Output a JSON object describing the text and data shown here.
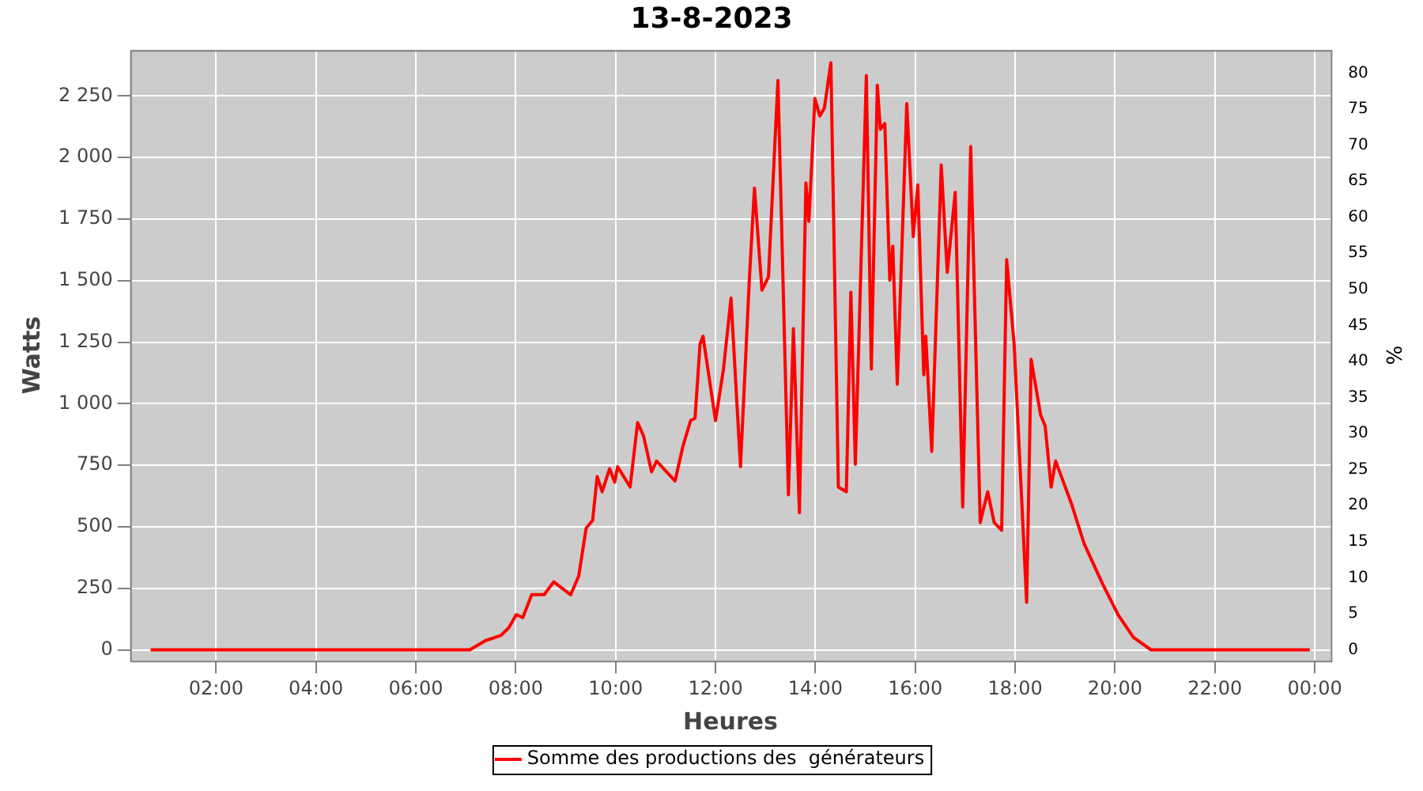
{
  "chart_data": {
    "type": "line",
    "title": "13-8-2023",
    "xlabel": "Heures",
    "ylabel": "Watts",
    "y2label": "%",
    "xlim": [
      0.28,
      24.32
    ],
    "xticks": [
      {
        "value": 2,
        "label": "02:00"
      },
      {
        "value": 4,
        "label": "04:00"
      },
      {
        "value": 6,
        "label": "06:00"
      },
      {
        "value": 8,
        "label": "08:00"
      },
      {
        "value": 10,
        "label": "10:00"
      },
      {
        "value": 12,
        "label": "12:00"
      },
      {
        "value": 14,
        "label": "14:00"
      },
      {
        "value": 16,
        "label": "16:00"
      },
      {
        "value": 18,
        "label": "18:00"
      },
      {
        "value": 20,
        "label": "20:00"
      },
      {
        "value": 22,
        "label": "22:00"
      },
      {
        "value": 24,
        "label": "00:00"
      }
    ],
    "ylim": [
      -44,
      2437
    ],
    "yticks": [
      0,
      250,
      500,
      750,
      {
        "value": 1000,
        "label": "1 000"
      },
      {
        "value": 1250,
        "label": "1 250"
      },
      {
        "value": 1500,
        "label": "1 500"
      },
      {
        "value": 1750,
        "label": "1 750"
      },
      {
        "value": 2000,
        "label": "2 000"
      },
      {
        "value": 2250,
        "label": "2 250"
      }
    ],
    "y2lim": [
      -1.5,
      83.2
    ],
    "y2ticks": [
      0,
      5,
      10,
      15,
      20,
      25,
      30,
      35,
      40,
      45,
      50,
      55,
      60,
      65,
      70,
      75,
      80
    ],
    "grid": true,
    "legend": "bottom",
    "marker": "none",
    "line_style": "solid",
    "series": [
      {
        "name": "Somme des productions des  générateurs",
        "color": "#ff0000",
        "x": [
          0.69,
          7.08,
          7.39,
          7.7,
          7.86,
          8.01,
          8.14,
          8.32,
          8.57,
          8.76,
          9.1,
          9.26,
          9.41,
          9.54,
          9.63,
          9.73,
          9.88,
          9.98,
          10.04,
          10.29,
          10.44,
          10.56,
          10.72,
          10.82,
          11.19,
          11.35,
          11.5,
          11.59,
          11.69,
          11.75,
          12.0,
          12.16,
          12.31,
          12.5,
          12.68,
          12.78,
          12.93,
          13.06,
          13.25,
          13.46,
          13.56,
          13.68,
          13.81,
          13.87,
          13.99,
          14.09,
          14.18,
          14.31,
          14.46,
          14.62,
          14.71,
          14.8,
          15.02,
          15.12,
          15.24,
          15.3,
          15.39,
          15.49,
          15.55,
          15.64,
          15.83,
          15.96,
          16.05,
          16.17,
          16.21,
          16.33,
          16.52,
          16.64,
          16.8,
          16.95,
          17.11,
          17.3,
          17.45,
          17.58,
          17.73,
          17.83,
          17.98,
          18.23,
          18.32,
          18.51,
          18.6,
          18.72,
          18.81,
          19.12,
          19.38,
          19.75,
          20.06,
          20.37,
          20.72,
          23.9
        ],
        "values": [
          0,
          0,
          37,
          58,
          89,
          143,
          131,
          224,
          224,
          276,
          224,
          299,
          494,
          526,
          704,
          642,
          736,
          681,
          744,
          661,
          923,
          868,
          723,
          767,
          686,
          829,
          931,
          941,
          1242,
          1274,
          931,
          1141,
          1429,
          744,
          1515,
          1876,
          1461,
          1515,
          2313,
          630,
          1305,
          557,
          1897,
          1741,
          2240,
          2169,
          2201,
          2385,
          661,
          642,
          1453,
          754,
          2333,
          1141,
          2294,
          2115,
          2138,
          1502,
          1640,
          1079,
          2219,
          1679,
          1889,
          1118,
          1274,
          806,
          1970,
          1534,
          1858,
          580,
          2045,
          517,
          642,
          517,
          486,
          1585,
          1242,
          193,
          1180,
          954,
          910,
          661,
          767,
          598,
          432,
          268,
          143,
          50,
          0,
          0
        ]
      }
    ]
  }
}
